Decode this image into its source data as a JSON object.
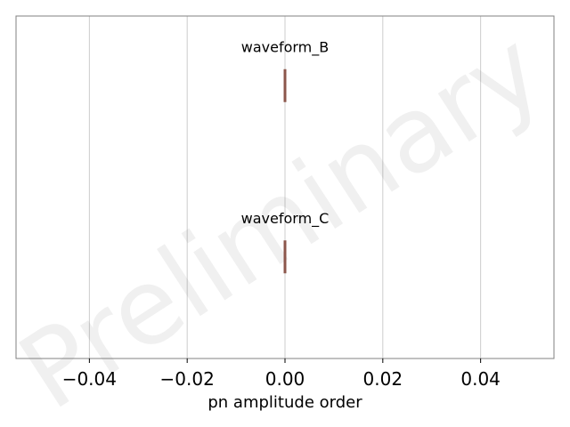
{
  "chart_data": {
    "type": "box",
    "orientation": "horizontal",
    "xlabel": "pn amplitude order",
    "ylabel": "",
    "title": "",
    "xlim": [
      -0.055,
      0.055
    ],
    "xticks": [
      -0.04,
      -0.02,
      0.0,
      0.02,
      0.04
    ],
    "xtick_labels": [
      "−0.04",
      "−0.02",
      "0.00",
      "0.02",
      "0.04"
    ],
    "grid": "vertical",
    "series": [
      {
        "name": "waveform_B",
        "values": [
          0,
          0,
          0,
          0,
          0
        ]
      },
      {
        "name": "waveform_C",
        "values": [
          0,
          0,
          0,
          0,
          0
        ]
      }
    ],
    "watermark": "Preliminary",
    "colors": {
      "box_edge": "#8c564b",
      "box_fill": "#e8b98a",
      "grid": "#cccccc",
      "frame": "#808080"
    }
  }
}
